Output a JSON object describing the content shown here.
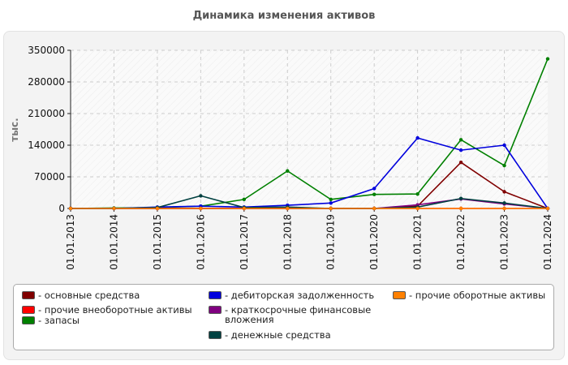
{
  "chart_data": {
    "type": "line",
    "title": "Динамика изменения активов",
    "ylabel": "тыс.",
    "xlabel": "",
    "ylim": [
      0,
      350000
    ],
    "yticks": [
      0,
      70000,
      140000,
      210000,
      280000,
      350000
    ],
    "ytick_labels": [
      "0",
      "70000",
      "140000",
      "210000",
      "280000",
      "350000"
    ],
    "categories": [
      "01.01.2013",
      "01.01.2014",
      "01.01.2015",
      "01.01.2016",
      "01.01.2017",
      "01.01.2018",
      "01.01.2019",
      "01.01.2020",
      "01.01.2021",
      "01.01.2022",
      "01.01.2023",
      "01.01.2024"
    ],
    "grid": true,
    "legend_position": "bottom",
    "series": [
      {
        "name": "- основные средства",
        "color": "#800000",
        "values": [
          0,
          0,
          0,
          0,
          0,
          0,
          0,
          0,
          5000,
          102000,
          37000,
          0
        ]
      },
      {
        "name": "- прочие внеоборотные активы",
        "color": "#ff0000",
        "values": [
          0,
          0,
          0,
          0,
          0,
          0,
          0,
          0,
          0,
          0,
          0,
          0
        ]
      },
      {
        "name": "- запасы",
        "color": "#008000",
        "values": [
          0,
          1000,
          2000,
          5000,
          20000,
          83000,
          20000,
          31000,
          32000,
          152000,
          95000,
          331000
        ]
      },
      {
        "name": "- дебиторская задолженность",
        "color": "#0000dd",
        "values": [
          0,
          0,
          3000,
          5000,
          3000,
          7000,
          12000,
          44000,
          156000,
          129000,
          140000,
          0
        ]
      },
      {
        "name": "- краткосрочные финансовые вложения",
        "color": "#800080",
        "values": [
          0,
          0,
          0,
          0,
          0,
          0,
          0,
          0,
          8000,
          21000,
          10000,
          0
        ]
      },
      {
        "name": "- денежные средства",
        "color": "#004040",
        "values": [
          0,
          0,
          2000,
          28000,
          2000,
          3000,
          0,
          0,
          3000,
          22000,
          12000,
          0
        ]
      },
      {
        "name": "- прочие оборотные активы",
        "color": "#ff8000",
        "values": [
          0,
          0,
          0,
          0,
          0,
          0,
          0,
          0,
          0,
          0,
          0,
          0
        ]
      }
    ]
  }
}
